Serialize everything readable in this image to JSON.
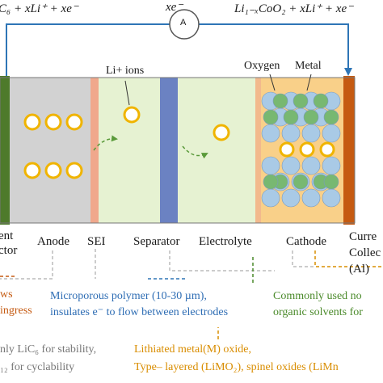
{
  "equations": {
    "anode": "C₆ + xLi⁺ + xe⁻",
    "electron": "xe⁻",
    "cathode": "Li₁₋ₓCoO₂ + xLi⁺ + xe⁻"
  },
  "ammeter_label": "A",
  "cell_labels": {
    "li_ions": "Li+ ions",
    "oxygen": "Oxygen",
    "metal": "Metal"
  },
  "component_labels": {
    "current_collector_left": [
      "ent",
      "ctor"
    ],
    "anode": "Anode",
    "sei": "SEI",
    "separator": "Separator",
    "electrolyte": "Electrolyte",
    "cathode": "Cathode",
    "current_collector_right": [
      "Curre",
      "Collec",
      "(Al)"
    ]
  },
  "notes": {
    "sei_note": [
      "ws",
      "ingress"
    ],
    "separator_note": [
      "Microporous polymer (10-30 µm),",
      "insulates e⁻ to flow between electrodes"
    ],
    "electrolyte_note": [
      "Commonly used no",
      "organic solvents for"
    ],
    "anode_note": [
      "nly LiC₆ for stability,",
      "₁₂ for cyclability"
    ],
    "cathode_note": [
      "Lithiated metal(M) oxide,",
      "Type– layered (LiMO₂), spinel oxides (LiMn"
    ]
  },
  "colors": {
    "left_collector": "#4e7a2b",
    "anode_region": "#d2d2d2",
    "sei": "#f0a88c",
    "electrolyte": "#e6f2d2",
    "separator": "#6b82c2",
    "cathode_region": "#f9d089",
    "right_collector": "#c55a11",
    "li_ion_fill": "#ffffff",
    "li_ion_stroke": "#f0b400",
    "oxygen": "#a9cae6",
    "metal": "#78b871",
    "arrow": "#2e75b6",
    "blue_text": "#2e6db4",
    "green_text": "#4a8a2a",
    "orange_text": "#d98d00",
    "dark_orange_text": "#c55a11"
  }
}
